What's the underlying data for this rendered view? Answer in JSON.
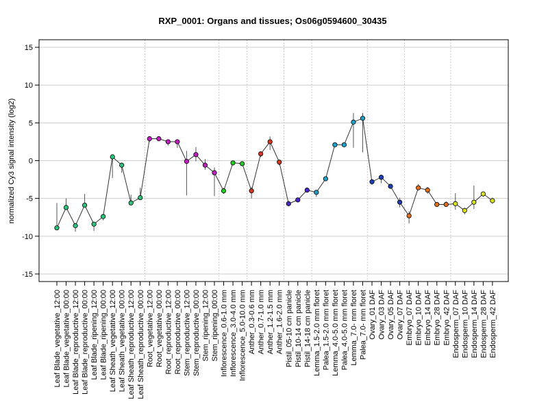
{
  "chart_data": {
    "type": "line",
    "title": "RXP_0001: Organs and tissues; Os06g0594600_30435",
    "ylabel": "normalized Cy3 signal intensity (log2)",
    "xlabel": "",
    "ylim": [
      -16,
      16
    ],
    "yticks": [
      -15,
      -10,
      -5,
      0,
      5,
      10,
      15
    ],
    "grid": true,
    "categories": [
      "Leaf Blade_vegetative_12:00",
      "Leaf Blade_vegetative_00:00",
      "Leaf Blade_reproductive_12:00",
      "Leaf Blade_reproductive_00:00",
      "Leaf Blade_ripening_12:00",
      "Leaf Blade_ripening_00:00",
      "Leaf Sheath_vegetative_12:00",
      "Leaf Sheath_vegetative_00:00",
      "Leaf Sheath_reproductive_12:00",
      "Leaf Sheath_reproductive_00:00",
      "Root_vegetative_12:00",
      "Root_vegetative_00:00",
      "Root_reproductive_12:00",
      "Root_reproductive_00:00",
      "Stem_reproductive_12:00",
      "Stem_reproductive_00:00",
      "Stem_ripening_12:00",
      "Stem_ripening_00:00",
      "Inflorescence_0.6-1.0 mm",
      "Inflorescence_3.0-4.0 mm",
      "Inflorescence_5.0-10.0 mm",
      "Anther_0.3-0.6 mm",
      "Anther_0.7-1.0 mm",
      "Anther_1.2-1.5 mm",
      "Anther_1.6-2.0 mm",
      "Pistil_05-10 cm panicle",
      "Pistil_10-14 cm panicle",
      "Pistil_14-18 cm panicle",
      "Lemma_1.5-2.0 mm floret",
      "Palea_1.5-2.0 mm floret",
      "Lemma_4.0-5.0 mm floret",
      "Palea_4.0-5.0 mm floret",
      "Lemma_7.0- mm floret",
      "Palea_7.0- mm floret",
      "Ovary_01 DAF",
      "Ovary_03 DAF",
      "Ovary_05 DAF",
      "Ovary_07 DAF",
      "Embryo_07 DAF",
      "Embryo_10 DAF",
      "Embryo_14 DAF",
      "Embryo_28 DAF",
      "Embryo_42 DAF",
      "Endosperm_07 DAF",
      "Endosperm_10 DAF",
      "Endosperm_14 DAF",
      "Endosperm_28 DAF",
      "Endosperm_42 DAF"
    ],
    "series": [
      {
        "values": [
          -8.9,
          -6.2,
          -8.6,
          -5.9,
          -8.4,
          -7.4,
          0.5,
          -0.6,
          -5.6,
          -4.9,
          2.9,
          2.9,
          2.5,
          2.5,
          -0.1,
          0.8,
          -0.6,
          -1.6,
          -4.0,
          -0.3,
          -0.4,
          -4.0,
          0.9,
          2.5,
          -0.2,
          -5.7,
          -5.2,
          -3.9,
          -4.2,
          -2.4,
          2.1,
          2.1,
          5.1,
          5.6,
          -2.8,
          -2.2,
          -3.4,
          -5.5,
          -7.3,
          -3.6,
          -3.9,
          -5.8,
          -5.8,
          -5.7,
          -6.6,
          -5.5,
          -4.4,
          -5.3
        ],
        "err_low": [
          -5.6,
          -5.0,
          -9.4,
          -4.4,
          -9.3,
          -7.9,
          -2.3,
          -1.6,
          -5.6,
          -3.6,
          2.5,
          2.6,
          2.0,
          1.7,
          -4.6,
          -0.1,
          -1.2,
          -4.7,
          -4.4,
          -0.6,
          -0.6,
          -5.0,
          0.5,
          1.4,
          -0.6,
          -5.9,
          -5.5,
          -4.1,
          -4.8,
          -2.6,
          1.8,
          1.8,
          1.7,
          1.1,
          -3.2,
          -3.0,
          -3.7,
          -6.2,
          -8.3,
          -3.9,
          -4.4,
          -6.1,
          -6.1,
          -6.5,
          -7.1,
          -6.4,
          -4.8,
          -5.7
        ],
        "err_high": [
          -8.9,
          -6.2,
          -8.6,
          -5.9,
          -8.4,
          -7.4,
          0.5,
          -0.6,
          -4.5,
          -4.9,
          2.9,
          2.9,
          2.5,
          2.5,
          1.3,
          1.8,
          0.2,
          -0.9,
          -3.6,
          0.0,
          -0.1,
          -3.5,
          1.2,
          3.2,
          0.1,
          -5.5,
          -5.0,
          -3.6,
          -3.9,
          -2.2,
          2.3,
          2.3,
          6.3,
          6.3,
          -2.5,
          -1.9,
          -3.1,
          -4.9,
          -6.7,
          -3.1,
          -3.5,
          -5.5,
          -5.4,
          -4.3,
          -6.2,
          -3.3,
          -4.1,
          -4.9
        ],
        "colors": [
          "#2ec27e",
          "#2ec27e",
          "#2ec27e",
          "#2ec27e",
          "#2ec27e",
          "#2ec27e",
          "#2ec27e",
          "#2ec27e",
          "#2ec27e",
          "#2ec27e",
          "#c020c0",
          "#c020c0",
          "#c020c0",
          "#c020c0",
          "#c020c0",
          "#c020c0",
          "#c020c0",
          "#c020c0",
          "#22cc22",
          "#22cc22",
          "#22cc22",
          "#d43820",
          "#d43820",
          "#d43820",
          "#d43820",
          "#4a28c8",
          "#4a28c8",
          "#4a28c8",
          "#1fa0c8",
          "#1fa0c8",
          "#1fa0c8",
          "#1fa0c8",
          "#1fa0c8",
          "#1fa0c8",
          "#1e3fb4",
          "#1e3fb4",
          "#1e3fb4",
          "#1e3fb4",
          "#e06f1c",
          "#e06f1c",
          "#e06f1c",
          "#e06f1c",
          "#e06f1c",
          "#d7e020",
          "#d7e020",
          "#d7e020",
          "#d7e020",
          "#d7e020"
        ]
      }
    ]
  }
}
